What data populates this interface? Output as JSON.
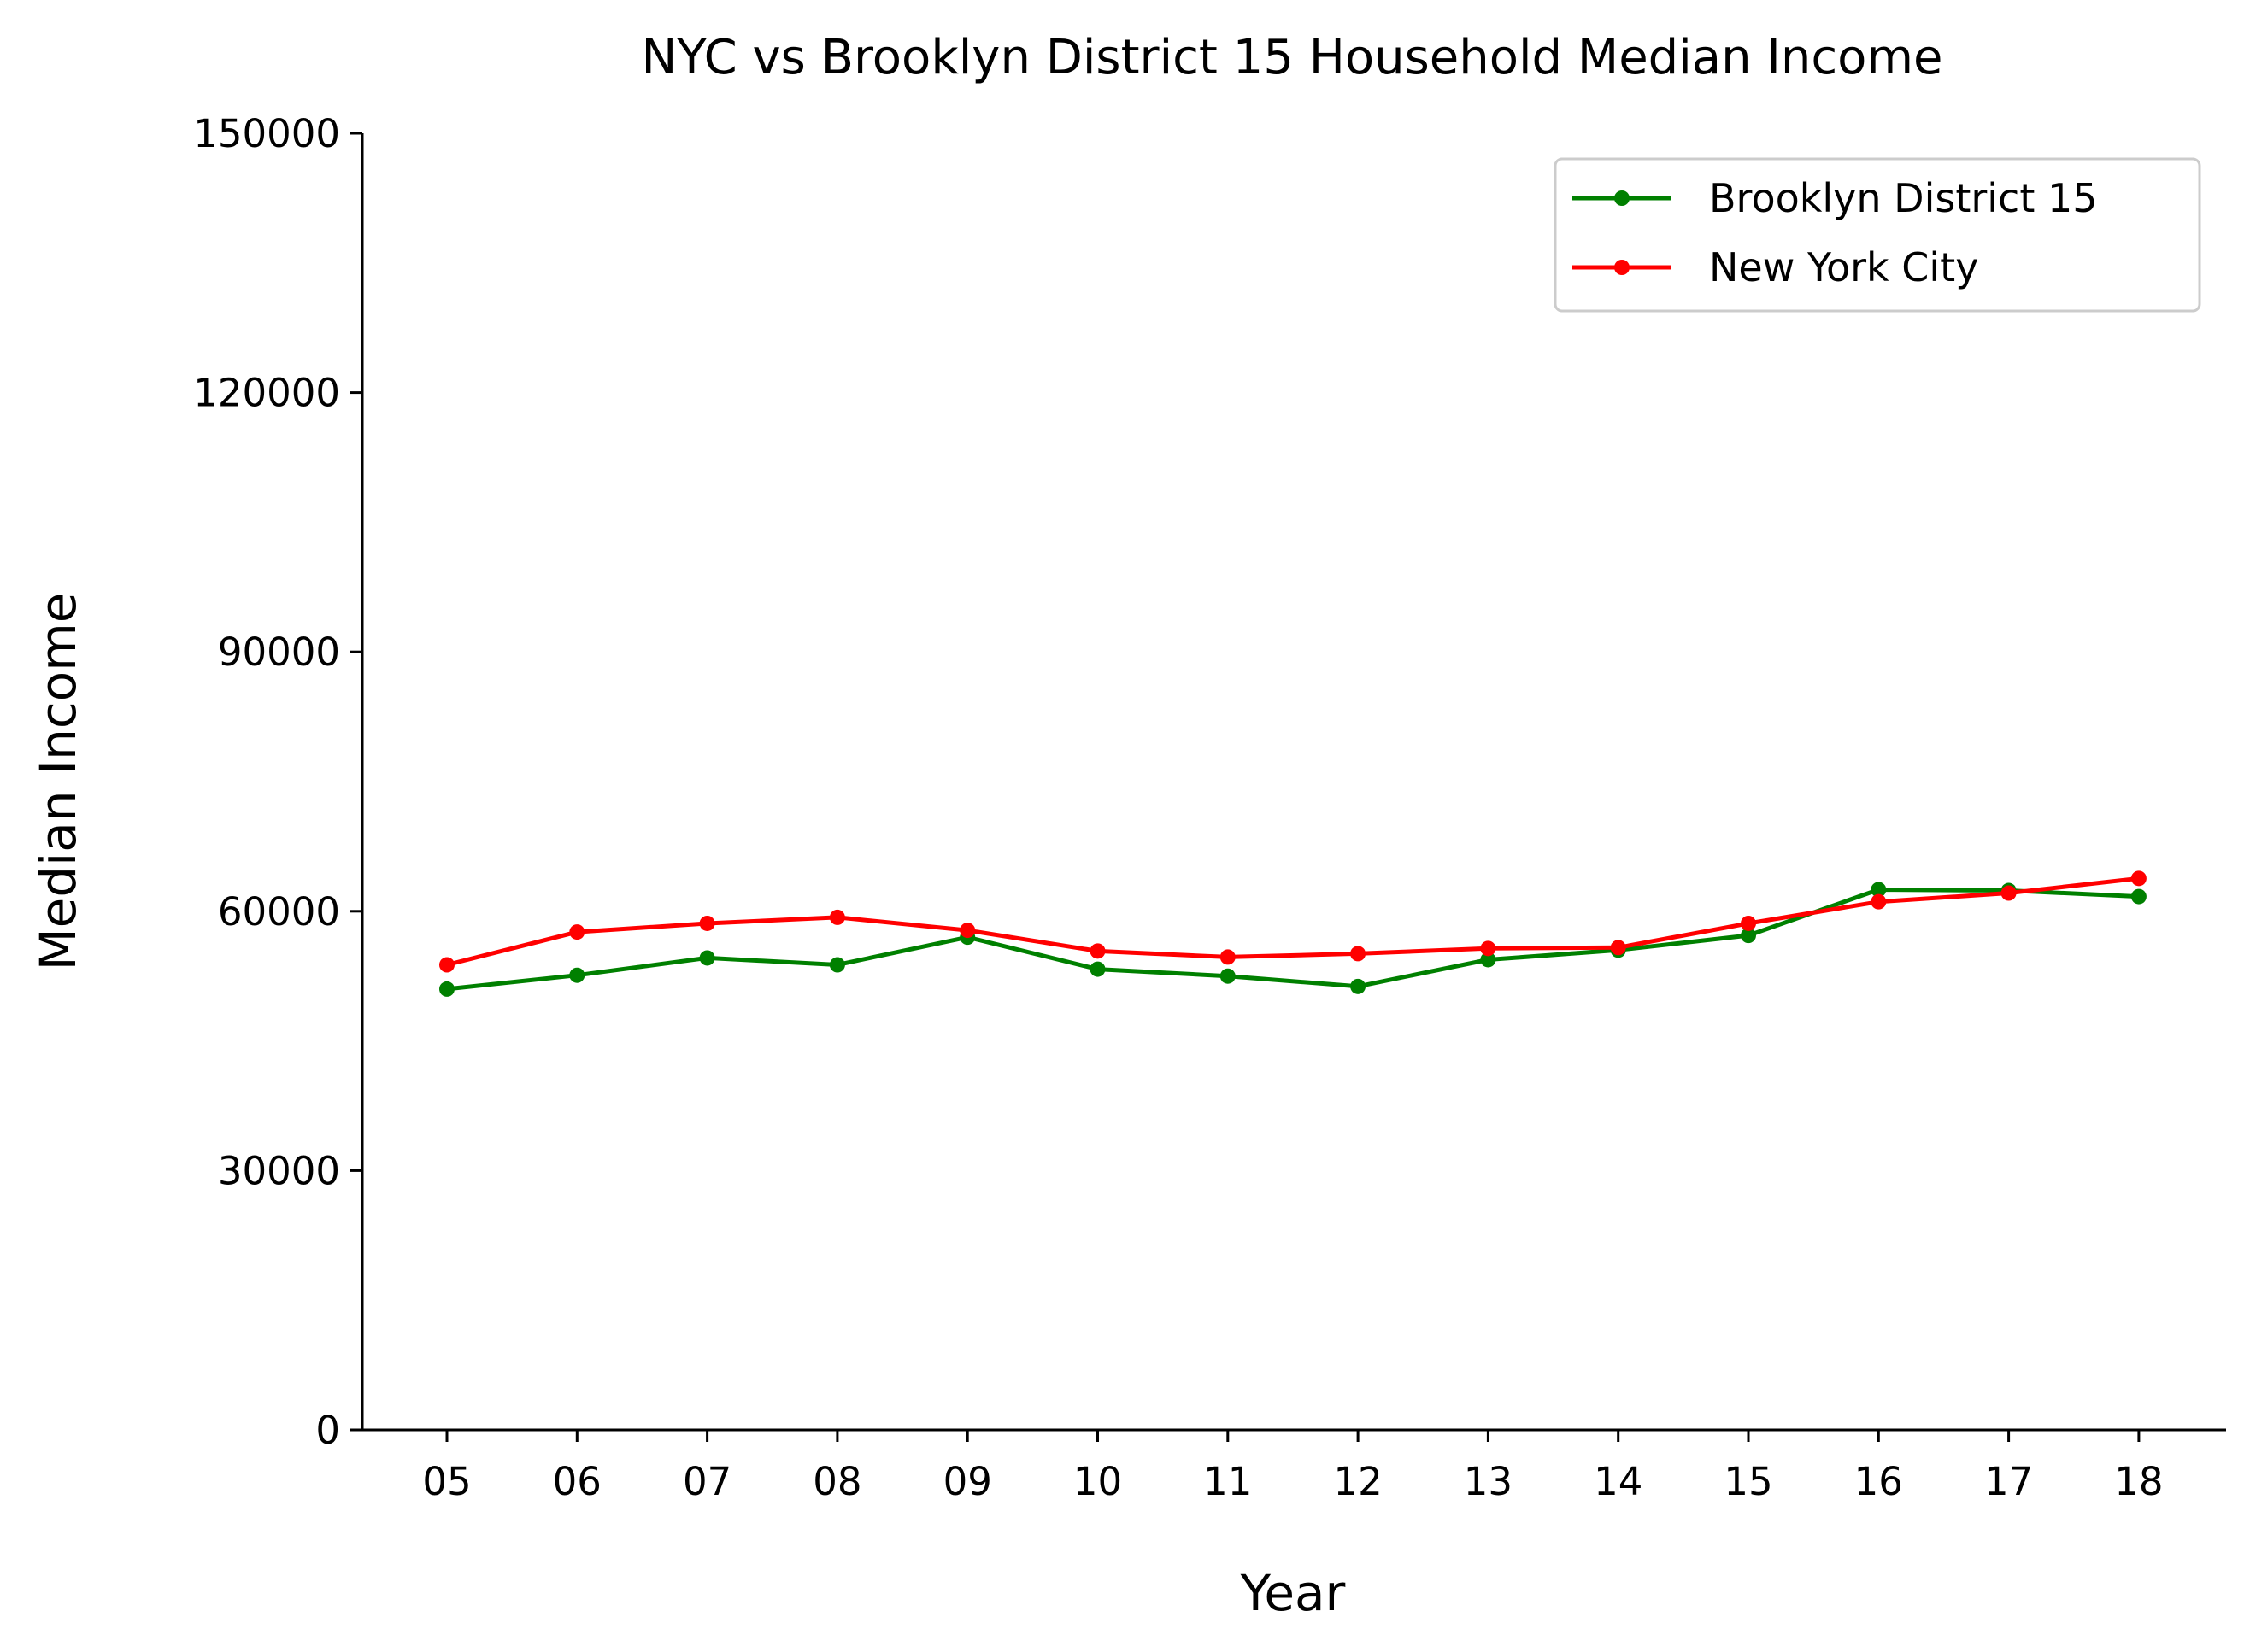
{
  "chart_data": {
    "type": "line",
    "title": "NYC vs Brooklyn District 15 Household Median Income",
    "xlabel": "Year",
    "ylabel": "Median Income",
    "categories": [
      "05",
      "06",
      "07",
      "08",
      "09",
      "10",
      "11",
      "12",
      "13",
      "14",
      "15",
      "16",
      "17",
      "18"
    ],
    "ylim": [
      0,
      150000
    ],
    "yticks": [
      "0",
      "30000",
      "60000",
      "90000",
      "120000",
      "150000"
    ],
    "grid": false,
    "legend_position": "top-right",
    "series": [
      {
        "name": "Brooklyn District 15",
        "color": "#008000",
        "values": [
          51000,
          52600,
          54600,
          53800,
          57000,
          53300,
          52500,
          51300,
          54400,
          55500,
          57200,
          62500,
          62400,
          61700
        ]
      },
      {
        "name": "New York City",
        "color": "#ff0000",
        "values": [
          53800,
          57600,
          58600,
          59300,
          57800,
          55400,
          54700,
          55100,
          55700,
          55800,
          58600,
          61100,
          62100,
          63800
        ]
      }
    ]
  }
}
